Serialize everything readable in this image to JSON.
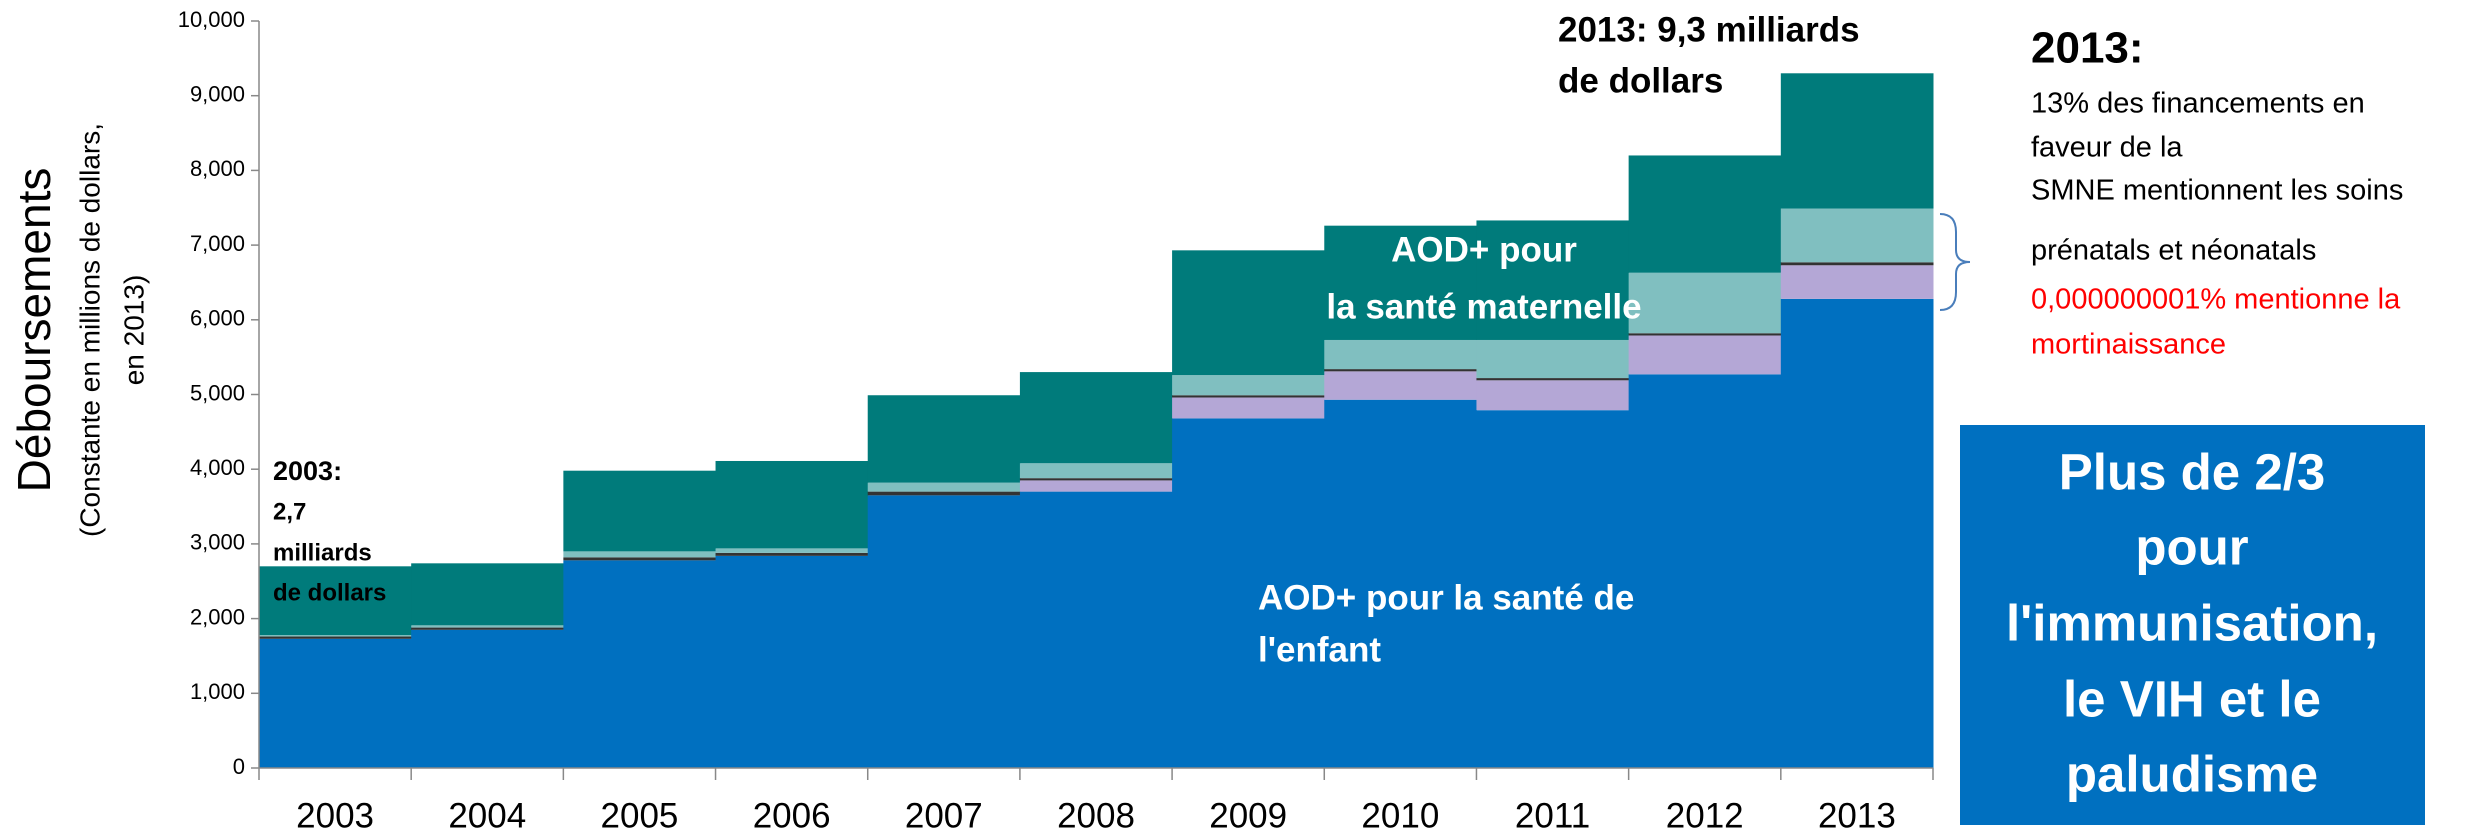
{
  "chart_data": {
    "type": "stacked_step_area",
    "categories": [
      "2003",
      "2004",
      "2005",
      "2006",
      "2007",
      "2008",
      "2009",
      "2010",
      "2011",
      "2012",
      "2013"
    ],
    "series": [
      {
        "color": "#0070c0",
        "values": [
          1730,
          1850,
          2780,
          2840,
          3650,
          3700,
          4680,
          4930,
          4790,
          5270,
          6280
        ]
      },
      {
        "color": "#b4a7d6",
        "values": [
          0,
          0,
          0,
          0,
          0,
          150,
          280,
          380,
          400,
          520,
          450
        ]
      },
      {
        "color": "#333333",
        "values": [
          30,
          30,
          40,
          40,
          50,
          30,
          30,
          30,
          30,
          30,
          40
        ]
      },
      {
        "color": "#80bfc0",
        "values": [
          20,
          30,
          80,
          60,
          120,
          200,
          270,
          390,
          510,
          810,
          720
        ]
      },
      {
        "color": "#007b7b",
        "values": [
          920,
          830,
          1080,
          1170,
          1170,
          1220,
          1670,
          1530,
          1600,
          1570,
          1810
        ]
      }
    ],
    "ylim": [
      0,
      10000
    ],
    "yticks": [
      0,
      {
        "value": 1000,
        "label": "1,000"
      },
      {
        "value": 2000,
        "label": "2,000"
      },
      {
        "value": 3000,
        "label": "3,000"
      },
      {
        "value": 4000,
        "label": "4,000"
      },
      {
        "value": 5000,
        "label": "5,000"
      },
      {
        "value": 6000,
        "label": "6,000"
      },
      {
        "value": 7000,
        "label": "7,000"
      },
      {
        "value": 8000,
        "label": "8,000"
      },
      {
        "value": 9000,
        "label": "9,000"
      },
      {
        "value": 10000,
        "label": "10,000"
      }
    ],
    "y_label": [
      "Déboursements",
      "(Constante en millions de dollars,",
      "en 2013)"
    ],
    "annotations": {
      "start": [
        "2003:",
        "2,7",
        "milliards",
        "de dollars"
      ],
      "end": [
        "2013: 9,3 milliards",
        "de dollars"
      ],
      "maternal": [
        "AOD+ pour",
        "la santé maternelle"
      ],
      "child": [
        "AOD+ pour la santé de",
        "l'enfant"
      ]
    },
    "side_note": {
      "title": "2013:",
      "lines": [
        "13% des financements en",
        "faveur  de la",
        "SMNE mentionnent les soins",
        "prénatals et néonatals"
      ],
      "red_lines": [
        "0,000000001% mentionne la",
        "mortinaissance"
      ]
    },
    "box": [
      "Plus de 2/3",
      "pour",
      "l'immunisation,",
      "le VIH et le",
      "paludisme"
    ]
  }
}
